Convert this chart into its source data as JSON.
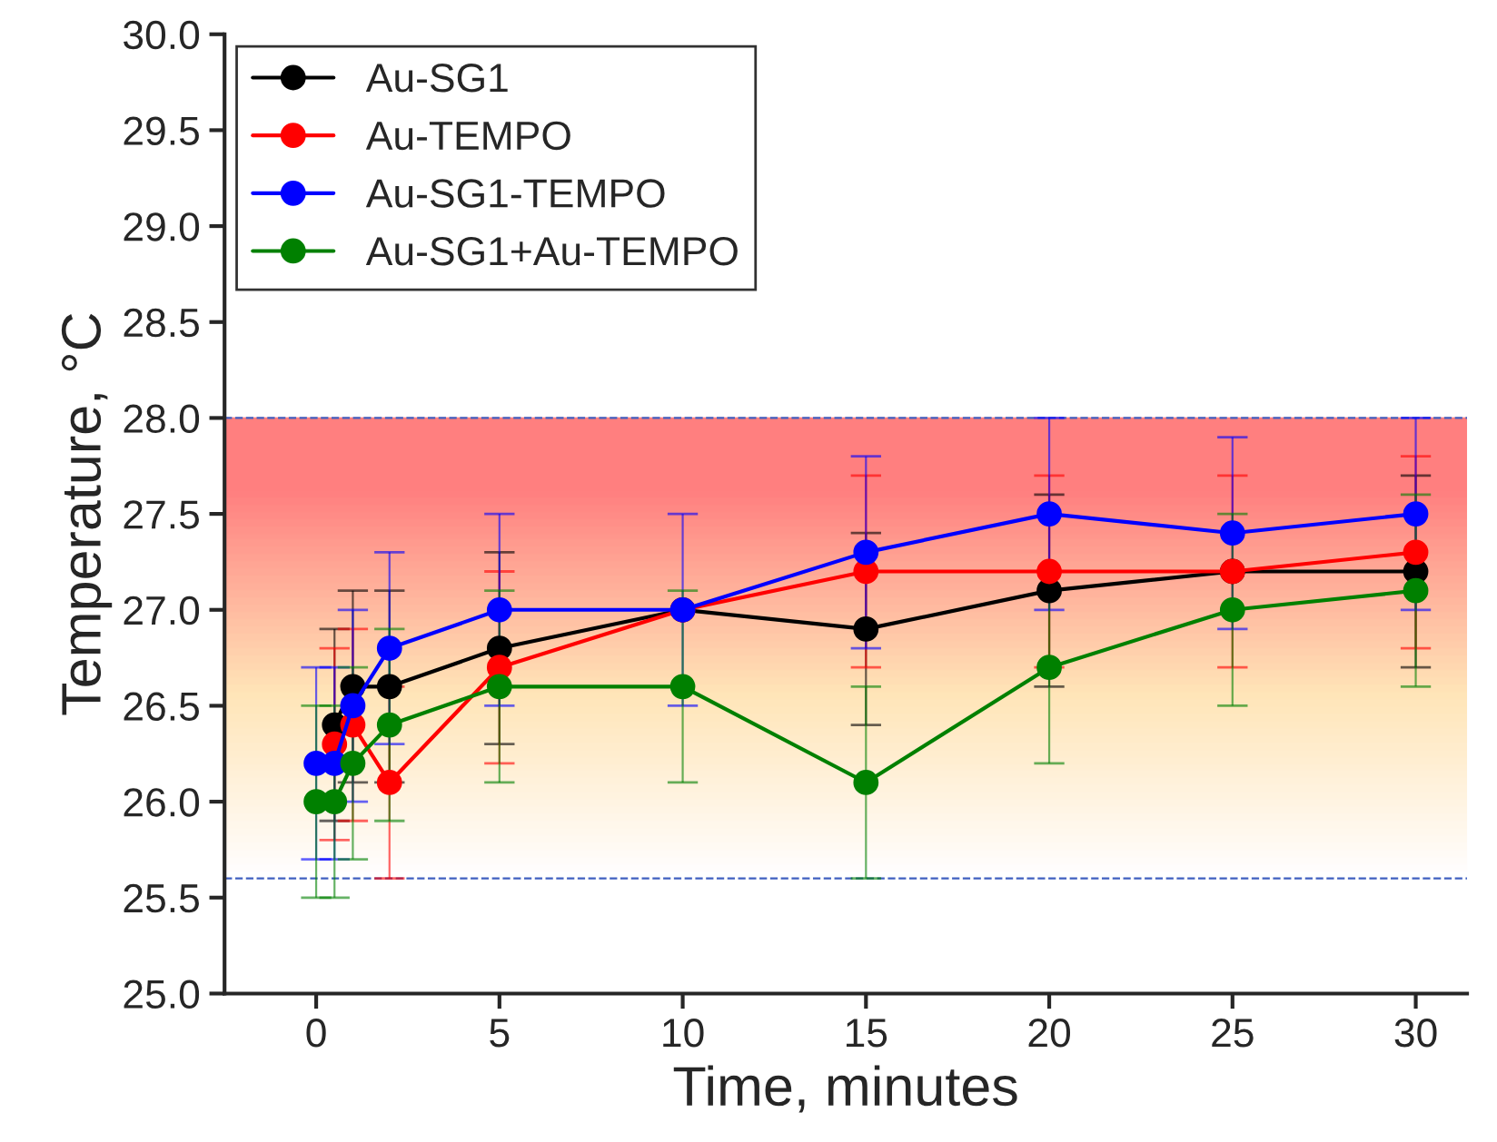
{
  "chart_data": {
    "type": "line",
    "xlabel": "Time, minutes",
    "ylabel": "Temperature, °C",
    "x": [
      0,
      0.5,
      1,
      2,
      5,
      10,
      15,
      20,
      25,
      30
    ],
    "series": [
      {
        "name": "Au-SG1",
        "color": "#000000",
        "values": [
          null,
          26.4,
          26.6,
          26.6,
          26.8,
          27.0,
          26.9,
          27.1,
          27.2,
          27.2
        ],
        "errors": [
          null,
          0.5,
          0.5,
          0.5,
          0.5,
          null,
          0.5,
          0.5,
          null,
          0.5
        ]
      },
      {
        "name": "Au-TEMPO",
        "color": "#ff0000",
        "values": [
          null,
          26.3,
          26.4,
          26.1,
          26.7,
          27.0,
          27.2,
          27.2,
          27.2,
          27.3
        ],
        "errors": [
          null,
          0.5,
          0.5,
          0.5,
          0.5,
          null,
          0.5,
          0.5,
          0.5,
          0.5
        ]
      },
      {
        "name": "Au-SG1-TEMPO",
        "color": "#0000ff",
        "values": [
          26.2,
          26.2,
          26.5,
          26.8,
          27.0,
          27.0,
          27.3,
          27.5,
          27.4,
          27.5
        ],
        "errors": [
          0.5,
          0.5,
          0.5,
          0.5,
          0.5,
          0.5,
          0.5,
          0.5,
          0.5,
          0.5
        ]
      },
      {
        "name": "Au-SG1+Au-TEMPO",
        "color": "#008000",
        "values": [
          26.0,
          26.0,
          26.2,
          26.4,
          26.6,
          26.6,
          26.1,
          26.7,
          27.0,
          27.1
        ],
        "errors": [
          0.5,
          0.5,
          0.5,
          0.5,
          0.5,
          0.5,
          0.5,
          0.5,
          0.5,
          0.5
        ]
      }
    ],
    "bands": [
      {
        "axis": "y",
        "from": 25.6,
        "to": 28.0,
        "color": "#ff7f7f"
      }
    ],
    "ref_lines": [
      {
        "axis": "y",
        "value": 25.6,
        "color": "#4060c0",
        "line_style": "dashed"
      },
      {
        "axis": "y",
        "value": 28.0,
        "color": "#4060c0",
        "line_style": "dashed"
      }
    ],
    "xlim": [
      -2.5,
      31.4
    ],
    "xticks": [
      0,
      5,
      10,
      15,
      20,
      25,
      30
    ],
    "ylim": [
      25.0,
      30.0
    ],
    "yticks": [
      {
        "value": 25.0,
        "label": "25.0"
      },
      {
        "value": 25.5,
        "label": "25.5"
      },
      {
        "value": 26.0,
        "label": "26.0"
      },
      {
        "value": 26.5,
        "label": "26.5"
      },
      {
        "value": 27.0,
        "label": "27.0"
      },
      {
        "value": 27.5,
        "label": "27.5"
      },
      {
        "value": 28.0,
        "label": "28.0"
      },
      {
        "value": 28.5,
        "label": "28.5"
      },
      {
        "value": 29.0,
        "label": "29.0"
      },
      {
        "value": 29.5,
        "label": "29.5"
      },
      {
        "value": 30.0,
        "label": "30.0"
      }
    ],
    "marker": "circle",
    "line_style": "solid",
    "legend": "top left",
    "grid": false
  }
}
